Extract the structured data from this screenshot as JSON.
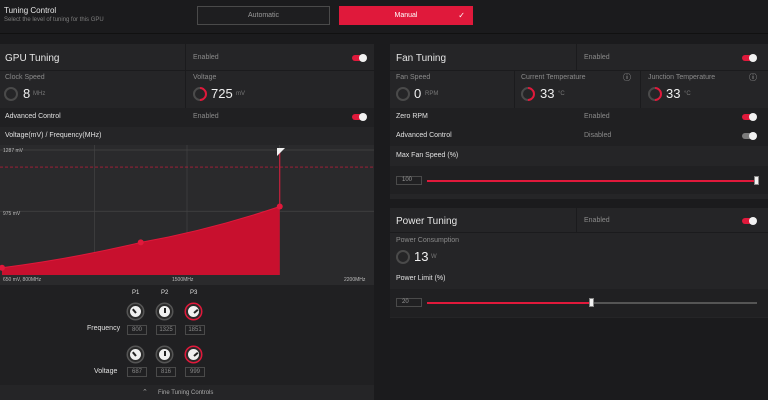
{
  "tuning_control": {
    "title": "Tuning Control",
    "subtitle": "Select the level of tuning for this GPU",
    "automatic_label": "Automatic",
    "manual_label": "Manual"
  },
  "gpu_tuning": {
    "title": "GPU Tuning",
    "status": "Enabled",
    "clock_speed_label": "Clock Speed",
    "clock_speed_value": "8",
    "clock_speed_unit": "MHz",
    "voltage_label": "Voltage",
    "voltage_value": "725",
    "voltage_unit": "mV",
    "advanced_control_label": "Advanced Control",
    "advanced_control_status": "Enabled",
    "curve_title": "Voltage(mV) / Frequency(MHz)"
  },
  "chart_data": {
    "type": "area",
    "title": "Voltage(mV) / Frequency(MHz)",
    "y_top_label": "1287 mV",
    "y_mid_label": "975 mV",
    "x_start_label": "650 mV, 800MHz",
    "x_mid_label": "1500MHz",
    "x_end_label": "2200MHz",
    "x": [
      800,
      1325,
      1851
    ],
    "y": [
      687,
      816,
      999
    ],
    "xlim": [
      800,
      2200
    ],
    "ylim": [
      650,
      1287
    ]
  },
  "pstates": {
    "columns": [
      "P1",
      "P2",
      "P3"
    ],
    "frequency_label": "Frequency",
    "frequency_values": [
      "800",
      "1325",
      "1851"
    ],
    "voltage_label": "Voltage",
    "voltage_values": [
      "687",
      "816",
      "999"
    ]
  },
  "fine_tuning_label": "Fine Tuning Controls",
  "fan_tuning": {
    "title": "Fan Tuning",
    "status": "Enabled",
    "fan_speed_label": "Fan Speed",
    "fan_speed_value": "0",
    "fan_speed_unit": "RPM",
    "current_temp_label": "Current Temperature",
    "current_temp_value": "33",
    "current_temp_unit": "°C",
    "junction_temp_label": "Junction Temperature",
    "junction_temp_value": "33",
    "junction_temp_unit": "°C",
    "zero_rpm_label": "Zero RPM",
    "zero_rpm_status": "Enabled",
    "advanced_control_label": "Advanced Control",
    "advanced_control_status": "Disabled",
    "max_fan_speed_label": "Max Fan Speed (%)",
    "max_fan_speed_value": "100",
    "max_fan_speed_fraction": 1.0
  },
  "power_tuning": {
    "title": "Power Tuning",
    "status": "Enabled",
    "power_consumption_label": "Power Consumption",
    "power_consumption_value": "13",
    "power_consumption_unit": "W",
    "power_limit_label": "Power Limit (%)",
    "power_limit_value": "20",
    "power_limit_fraction": 0.5
  },
  "colors": {
    "accent": "#e0193b",
    "panel": "#252527",
    "background": "#1b1b1d"
  }
}
